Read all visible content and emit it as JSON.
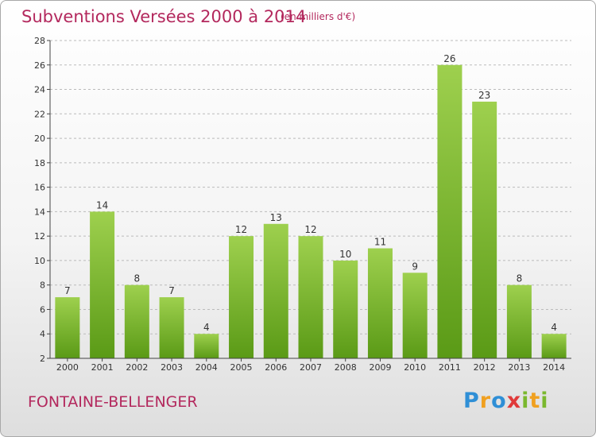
{
  "header": {
    "title": "Subventions Versées 2000 à 2014",
    "unit": "(en milliers d'€)"
  },
  "footer": {
    "commune": "FONTAINE-BELLENGER",
    "logo_text": "Proxiti"
  },
  "colors": {
    "title": "#b3285d",
    "bar_top": "#9ed04e",
    "bar_bottom": "#5a9a16",
    "axis": "#444444",
    "grid": "#bbbbbb"
  },
  "chart_data": {
    "type": "bar",
    "title": "Subventions Versées 2000 à 2014",
    "subtitle": "(en milliers d'€)",
    "xlabel": "",
    "ylabel": "",
    "categories": [
      "2000",
      "2001",
      "2002",
      "2003",
      "2004",
      "2005",
      "2006",
      "2007",
      "2008",
      "2009",
      "2010",
      "2011",
      "2012",
      "2013",
      "2014"
    ],
    "values": [
      7,
      14,
      8,
      7,
      4,
      12,
      13,
      12,
      10,
      11,
      9,
      26,
      23,
      8,
      4
    ],
    "ylim": [
      2,
      28
    ],
    "yticks": [
      2,
      4,
      6,
      8,
      10,
      12,
      14,
      16,
      18,
      20,
      22,
      24,
      26,
      28
    ],
    "grid": "horizontal dashed",
    "data_labels": true
  }
}
